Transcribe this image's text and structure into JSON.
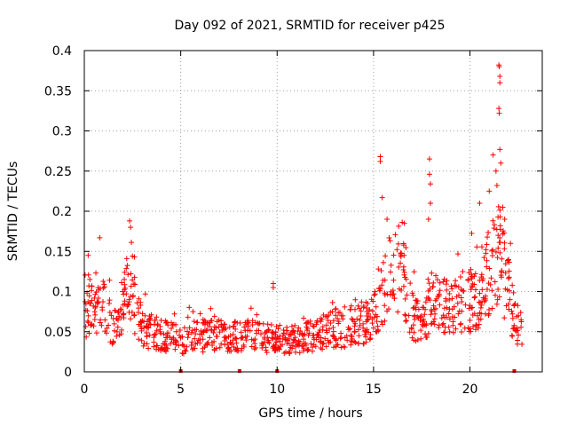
{
  "chart_data": {
    "type": "scatter",
    "title": "Day 092 of 2021, SRMTID for receiver p425",
    "xlabel": "GPS time / hours",
    "ylabel": "SRMTID / TECUs",
    "xlim": [
      0,
      23.75
    ],
    "ylim": [
      0,
      0.4
    ],
    "x_ticks": [
      0,
      5,
      10,
      15,
      20
    ],
    "y_ticks": [
      0,
      0.05,
      0.1,
      0.15,
      0.2,
      0.25,
      0.3,
      0.35,
      0.4
    ],
    "x_tick_labels": [
      "0",
      "5",
      "10",
      "15",
      "20"
    ],
    "y_tick_labels": [
      "0",
      "0.05",
      "0.1",
      "0.15",
      "0.2",
      "0.25",
      "0.3",
      "0.35",
      "0.4"
    ],
    "grid": true,
    "marker": "+",
    "series_color": "#ff0000",
    "gap_markers_x": [
      5.0,
      8.05,
      10.0,
      22.3
    ],
    "trend": [
      [
        0.0,
        0.07
      ],
      [
        0.3,
        0.09
      ],
      [
        0.7,
        0.085
      ],
      [
        1.0,
        0.08
      ],
      [
        1.5,
        0.06
      ],
      [
        2.0,
        0.08
      ],
      [
        2.4,
        0.12
      ],
      [
        2.7,
        0.07
      ],
      [
        3.0,
        0.055
      ],
      [
        4.0,
        0.045
      ],
      [
        5.0,
        0.04
      ],
      [
        6.0,
        0.045
      ],
      [
        7.0,
        0.045
      ],
      [
        8.0,
        0.045
      ],
      [
        9.0,
        0.045
      ],
      [
        10.0,
        0.04
      ],
      [
        11.0,
        0.04
      ],
      [
        12.0,
        0.045
      ],
      [
        13.0,
        0.055
      ],
      [
        14.0,
        0.055
      ],
      [
        15.0,
        0.07
      ],
      [
        15.5,
        0.11
      ],
      [
        16.0,
        0.12
      ],
      [
        16.5,
        0.13
      ],
      [
        17.0,
        0.07
      ],
      [
        17.5,
        0.055
      ],
      [
        18.0,
        0.09
      ],
      [
        18.5,
        0.08
      ],
      [
        19.0,
        0.08
      ],
      [
        20.0,
        0.09
      ],
      [
        20.5,
        0.09
      ],
      [
        21.0,
        0.13
      ],
      [
        21.3,
        0.15
      ],
      [
        21.6,
        0.14
      ],
      [
        22.0,
        0.1
      ],
      [
        22.3,
        0.07
      ],
      [
        22.7,
        0.05
      ]
    ],
    "spikes": [
      [
        0.2,
        0.145
      ],
      [
        0.8,
        0.167
      ],
      [
        2.35,
        0.188
      ],
      [
        2.4,
        0.18
      ],
      [
        9.8,
        0.11
      ],
      [
        9.8,
        0.105
      ],
      [
        15.35,
        0.268
      ],
      [
        15.35,
        0.262
      ],
      [
        15.45,
        0.217
      ],
      [
        15.7,
        0.19
      ],
      [
        16.6,
        0.185
      ],
      [
        17.9,
        0.265
      ],
      [
        17.9,
        0.246
      ],
      [
        17.95,
        0.234
      ],
      [
        17.95,
        0.21
      ],
      [
        17.85,
        0.19
      ],
      [
        20.5,
        0.21
      ],
      [
        21.0,
        0.225
      ],
      [
        21.2,
        0.27
      ],
      [
        21.35,
        0.25
      ],
      [
        21.4,
        0.232
      ],
      [
        21.5,
        0.382
      ],
      [
        21.52,
        0.38
      ],
      [
        21.55,
        0.368
      ],
      [
        21.55,
        0.36
      ],
      [
        21.5,
        0.328
      ],
      [
        21.52,
        0.322
      ],
      [
        21.55,
        0.277
      ],
      [
        21.6,
        0.26
      ],
      [
        21.7,
        0.205
      ],
      [
        21.8,
        0.19
      ],
      [
        22.1,
        0.16
      ]
    ],
    "point_count": 1100
  }
}
